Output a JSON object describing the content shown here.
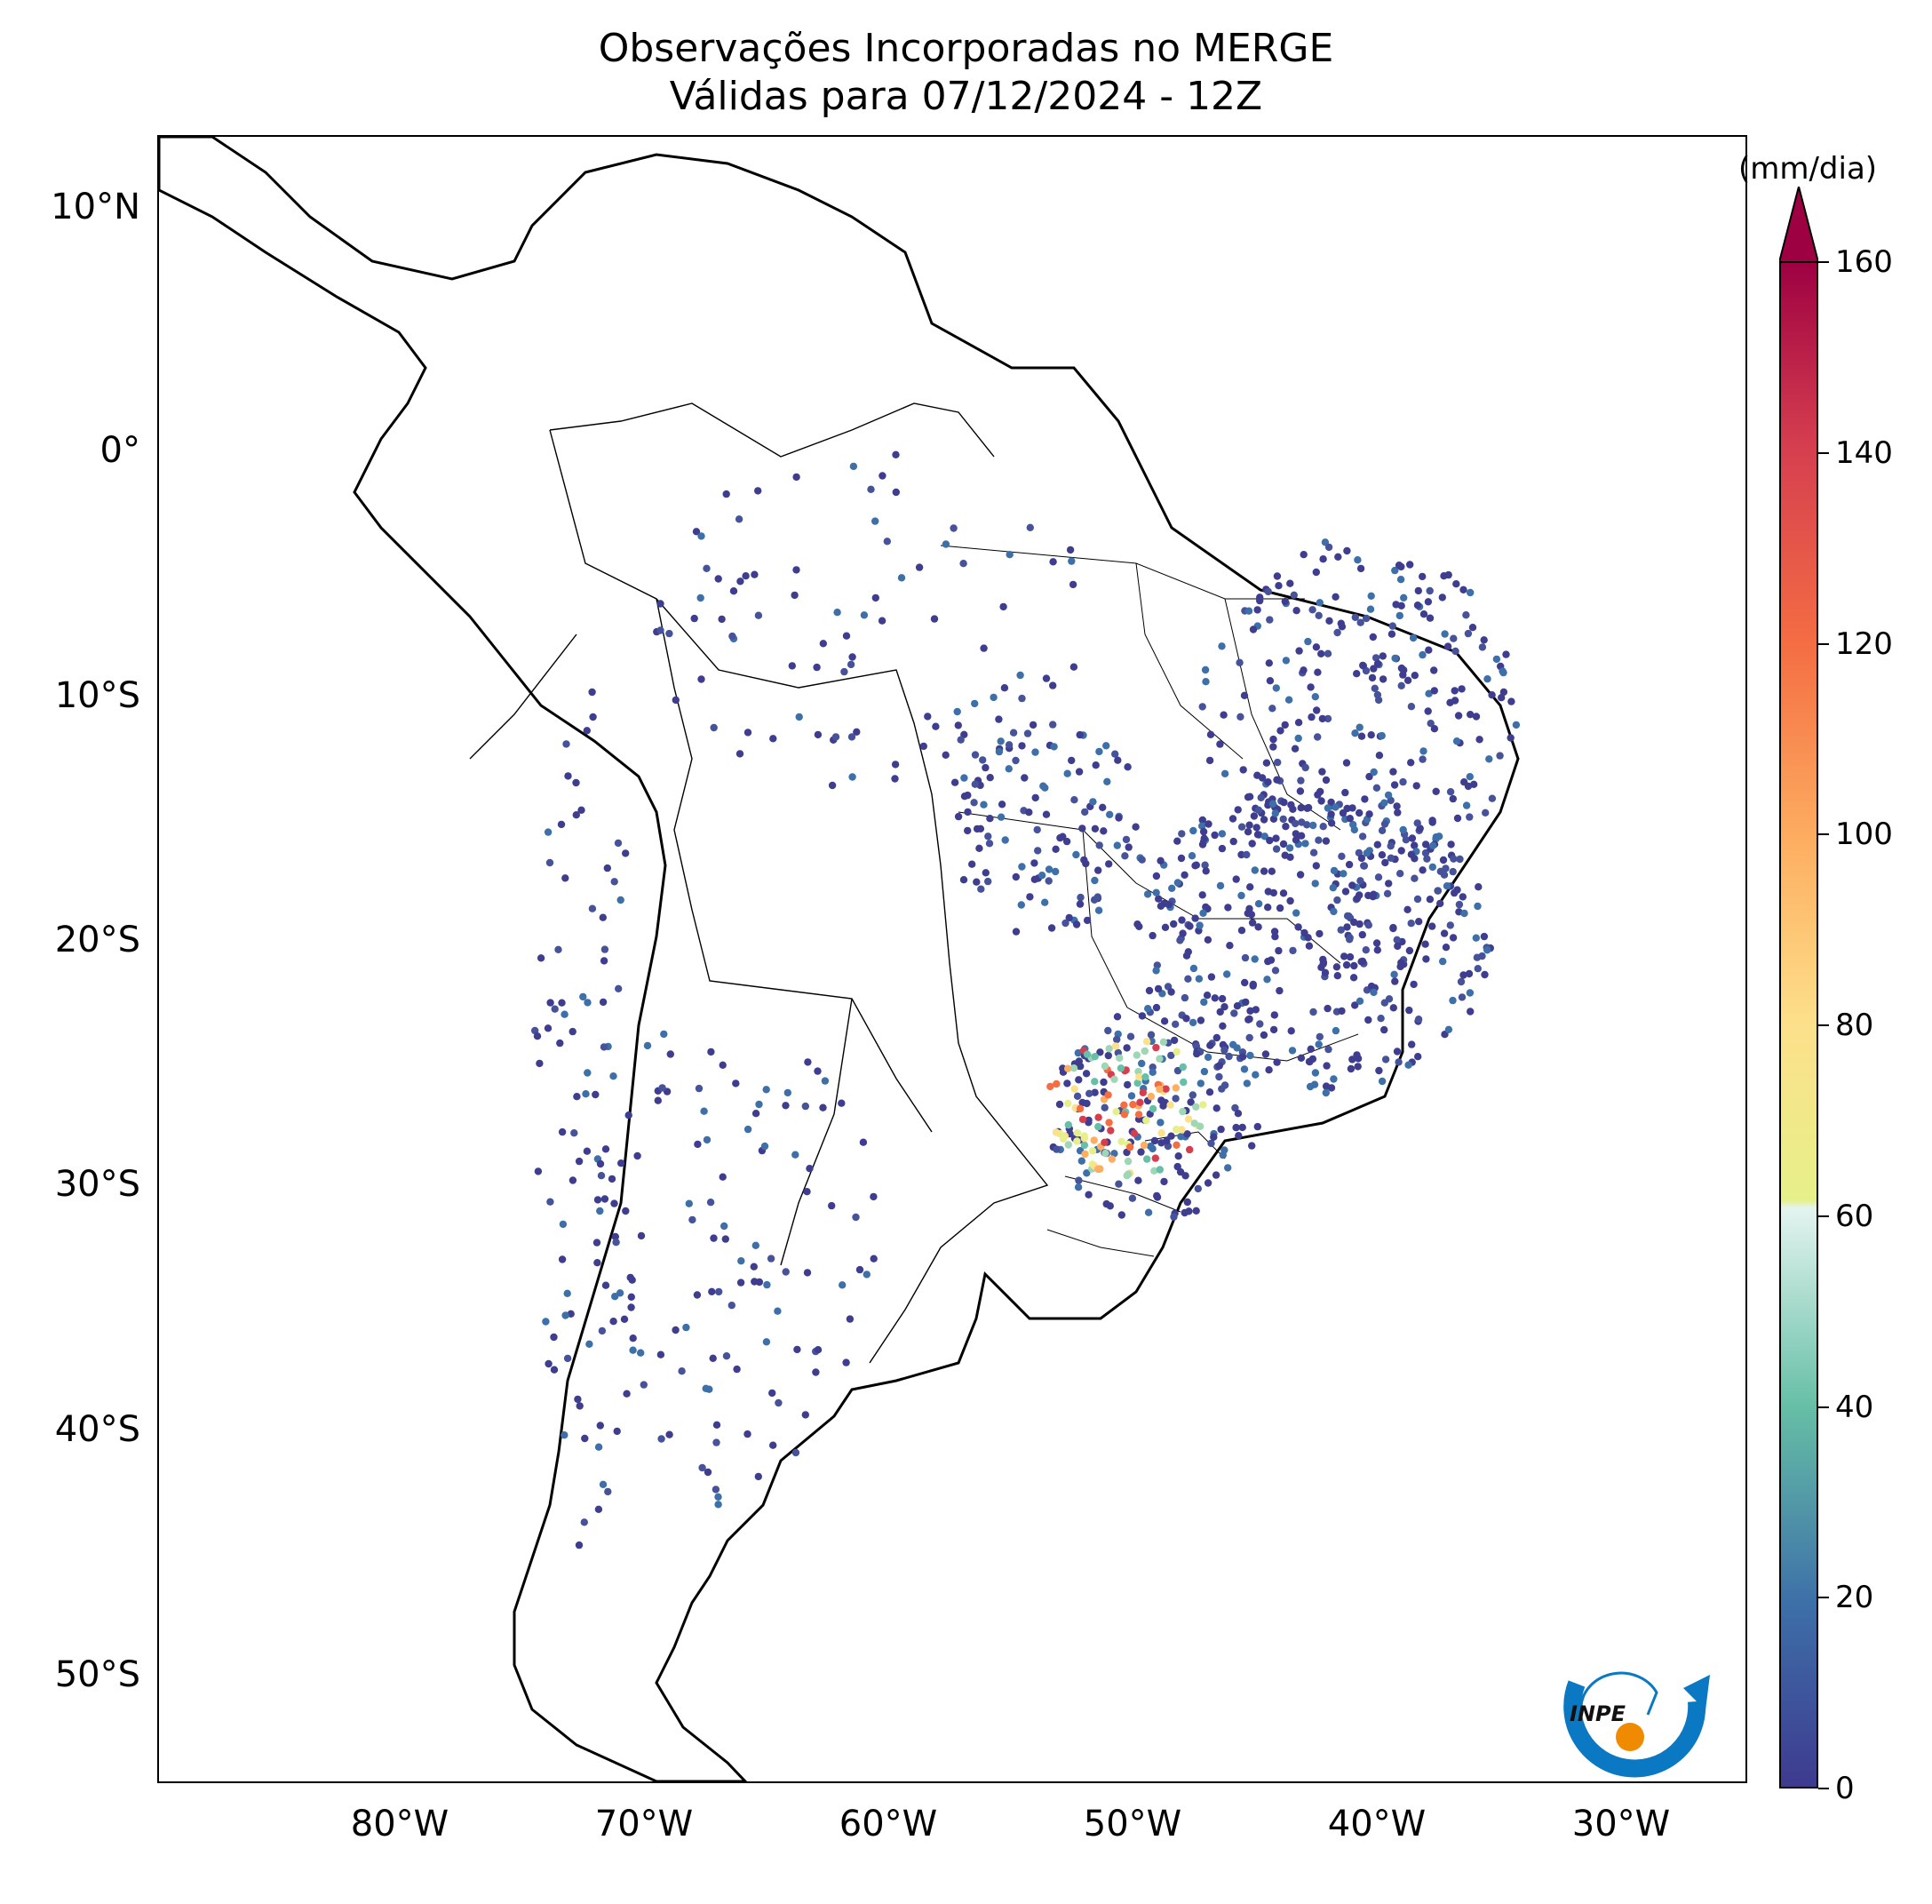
{
  "title": {
    "line1": "Observações Incorporadas no MERGE",
    "line2": "Válidas para 07/12/2024 - 12Z"
  },
  "map": {
    "lat_ticks": [
      "10°N",
      "0°",
      "10°S",
      "20°S",
      "30°S",
      "40°S",
      "50°S"
    ],
    "lon_ticks": [
      "80°W",
      "70°W",
      "60°W",
      "50°W",
      "40°W",
      "30°W"
    ],
    "land_color": "#ffffff",
    "coast_color": "#000000",
    "station_base_color": "#3f3d8f"
  },
  "colorbar": {
    "unit": "(mm/dia)",
    "ticks": [
      "0",
      "20",
      "40",
      "60",
      "80",
      "100",
      "120",
      "140",
      "160"
    ],
    "range": [
      0,
      160
    ],
    "extend": "max",
    "colormap": "Spectral_r"
  },
  "logo": {
    "text": "INPE",
    "swoosh_color": "#0a78c2",
    "dot_color": "#f08a00"
  }
}
